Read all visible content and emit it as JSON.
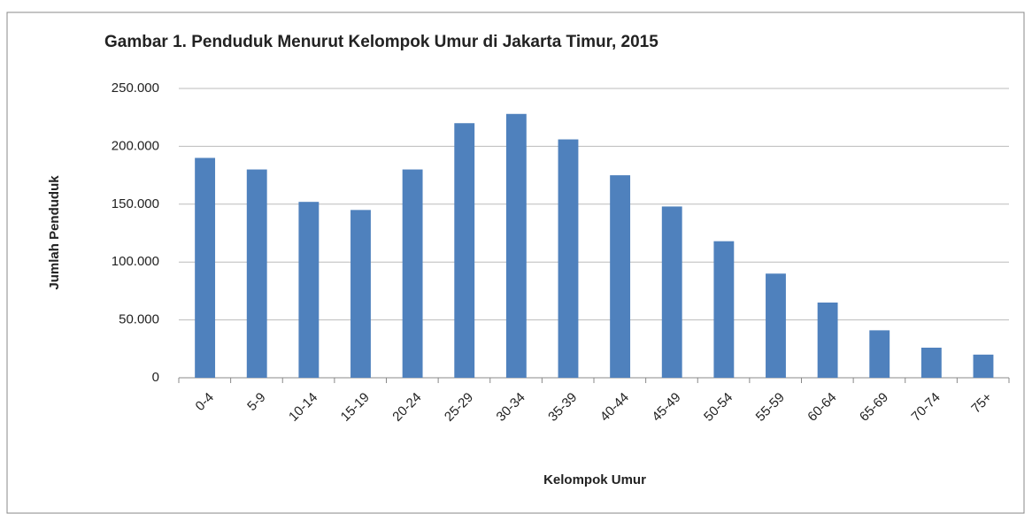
{
  "chart_data": {
    "type": "bar",
    "title": "Gambar 1. Penduduk Menurut Kelompok Umur di Jakarta Timur, 2015",
    "x_label": "Kelompok Umur",
    "y_label": "Jumlah Penduduk",
    "categories": [
      "0-4",
      "5-9",
      "10-14",
      "15-19",
      "20-24",
      "25-29",
      "30-34",
      "35-39",
      "40-44",
      "45-49",
      "50-54",
      "55-59",
      "60-64",
      "65-69",
      "70-74",
      "75+"
    ],
    "values": [
      190000,
      180000,
      152000,
      145000,
      180000,
      220000,
      228000,
      206000,
      175000,
      148000,
      118000,
      90000,
      65000,
      41000,
      26000,
      20000
    ],
    "color": "#4f81bd",
    "ylim": [
      0,
      250000
    ],
    "yticks": [
      0,
      {
        "value": 50000,
        "label": "50.000"
      },
      {
        "value": 100000,
        "label": "100.000"
      },
      {
        "value": 150000,
        "label": "150.000"
      },
      {
        "value": 200000,
        "label": "200.000"
      },
      {
        "value": 250000,
        "label": "250.000"
      }
    ],
    "grid": true
  }
}
